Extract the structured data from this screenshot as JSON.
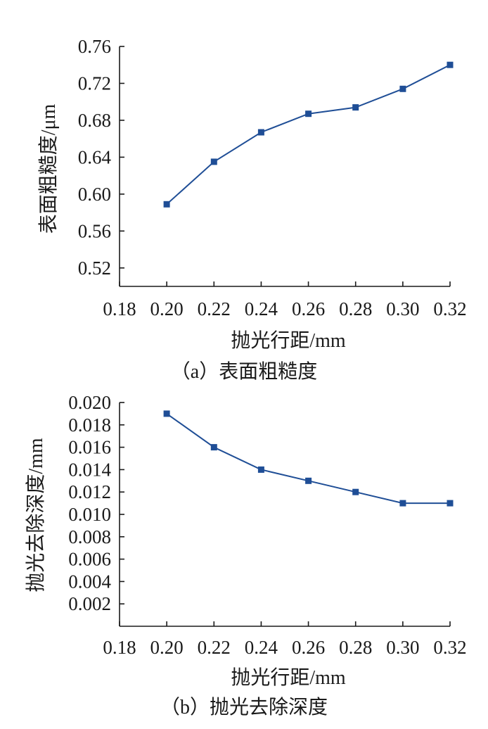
{
  "chart_data": [
    {
      "type": "line",
      "title": "",
      "caption": "（a）表面粗糙度",
      "xlabel": "抛光行距/mm",
      "ylabel": "表面粗糙度/μm",
      "xlim": [
        0.18,
        0.32
      ],
      "ylim": [
        0.5,
        0.76
      ],
      "x_ticks": [
        "0.18",
        "0.20",
        "0.22",
        "0.24",
        "0.26",
        "0.28",
        "0.30",
        "0.32"
      ],
      "y_ticks": [
        "0.52",
        "0.56",
        "0.60",
        "0.64",
        "0.68",
        "0.72",
        "0.76"
      ],
      "grid": false,
      "color": "#1f4e96",
      "series": [
        {
          "x": [
            0.2,
            0.22,
            0.24,
            0.26,
            0.28,
            0.3,
            0.32
          ],
          "values": [
            0.589,
            0.635,
            0.667,
            0.687,
            0.694,
            0.714,
            0.74
          ]
        }
      ]
    },
    {
      "type": "line",
      "title": "",
      "caption": "（b）抛光去除深度",
      "xlabel": "抛光行距/mm",
      "ylabel": "抛光去除深度/mm",
      "xlim": [
        0.18,
        0.32
      ],
      "ylim": [
        0.0,
        0.02
      ],
      "x_ticks": [
        "0.18",
        "0.20",
        "0.22",
        "0.24",
        "0.26",
        "0.28",
        "0.30",
        "0.32"
      ],
      "y_ticks": [
        "0.002",
        "0.004",
        "0.006",
        "0.008",
        "0.010",
        "0.012",
        "0.014",
        "0.016",
        "0.018",
        "0.020"
      ],
      "grid": false,
      "color": "#1f4e96",
      "series": [
        {
          "x": [
            0.2,
            0.22,
            0.24,
            0.26,
            0.28,
            0.3,
            0.32
          ],
          "values": [
            0.019,
            0.016,
            0.014,
            0.013,
            0.012,
            0.011,
            0.011
          ]
        }
      ]
    }
  ]
}
